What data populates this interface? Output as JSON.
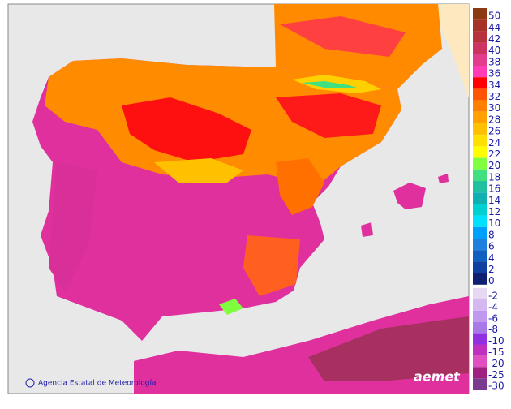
{
  "legend": {
    "upper": [
      {
        "value": 50,
        "color": "#8b3a12"
      },
      {
        "value": 44,
        "color": "#a53224"
      },
      {
        "value": 42,
        "color": "#b8323e"
      },
      {
        "value": 40,
        "color": "#cc3462"
      },
      {
        "value": 38,
        "color": "#e23c8c"
      },
      {
        "value": 36,
        "color": "#ff3cb4"
      },
      {
        "value": 34,
        "color": "#ff0000"
      },
      {
        "value": 32,
        "color": "#ff5500"
      },
      {
        "value": 30,
        "color": "#ff8000"
      },
      {
        "value": 28,
        "color": "#ffa000"
      },
      {
        "value": 26,
        "color": "#ffc000"
      },
      {
        "value": 24,
        "color": "#ffe000"
      },
      {
        "value": 22,
        "color": "#ffff00"
      },
      {
        "value": 20,
        "color": "#80ff40"
      },
      {
        "value": 18,
        "color": "#40e080"
      },
      {
        "value": 16,
        "color": "#20c0a0"
      },
      {
        "value": 14,
        "color": "#10b0b0"
      },
      {
        "value": 12,
        "color": "#00d0d0"
      },
      {
        "value": 10,
        "color": "#00e0ff"
      },
      {
        "value": 8,
        "color": "#00a0ff"
      },
      {
        "value": 6,
        "color": "#2080e0"
      },
      {
        "value": 4,
        "color": "#1060c0"
      },
      {
        "value": 2,
        "color": "#1040a0"
      },
      {
        "value": 0,
        "color": "#102070"
      }
    ],
    "lower": [
      {
        "value": -2,
        "color": "#e6d8f2"
      },
      {
        "value": -4,
        "color": "#d4b8f0"
      },
      {
        "value": -6,
        "color": "#c098f0"
      },
      {
        "value": -8,
        "color": "#a878e8"
      },
      {
        "value": -10,
        "color": "#9030e0"
      },
      {
        "value": -15,
        "color": "#c030c0"
      },
      {
        "value": -20,
        "color": "#e050c0"
      },
      {
        "value": -25,
        "color": "#a02080"
      },
      {
        "value": -30,
        "color": "#7a3a90"
      }
    ]
  },
  "footer": {
    "credit": "Agencia Estatal de Meteorología",
    "logo": "aemet"
  }
}
